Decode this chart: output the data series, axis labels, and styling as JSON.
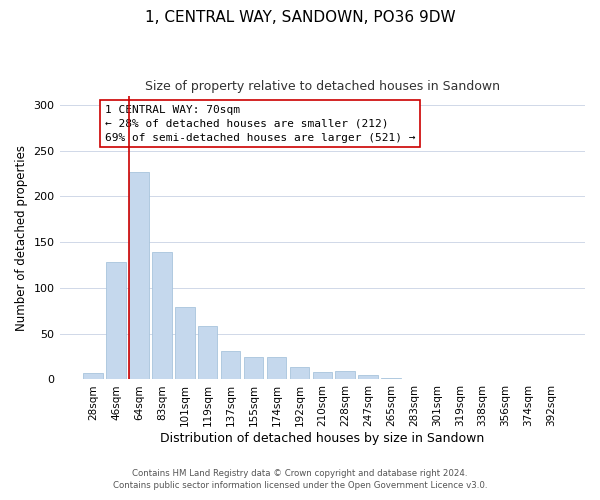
{
  "title": "1, CENTRAL WAY, SANDOWN, PO36 9DW",
  "subtitle": "Size of property relative to detached houses in Sandown",
  "xlabel": "Distribution of detached houses by size in Sandown",
  "ylabel": "Number of detached properties",
  "bar_labels": [
    "28sqm",
    "46sqm",
    "64sqm",
    "83sqm",
    "101sqm",
    "119sqm",
    "137sqm",
    "155sqm",
    "174sqm",
    "192sqm",
    "210sqm",
    "228sqm",
    "247sqm",
    "265sqm",
    "283sqm",
    "301sqm",
    "319sqm",
    "338sqm",
    "356sqm",
    "374sqm",
    "392sqm"
  ],
  "bar_values": [
    7,
    128,
    226,
    139,
    79,
    58,
    31,
    25,
    25,
    14,
    8,
    9,
    5,
    2,
    1,
    0,
    1,
    0,
    0,
    0,
    0
  ],
  "bar_color": "#c5d8ed",
  "bar_edge_color": "#a8c4dc",
  "vline_x_index": 2,
  "vline_color": "#cc0000",
  "ylim": [
    0,
    310
  ],
  "yticks": [
    0,
    50,
    100,
    150,
    200,
    250,
    300
  ],
  "annotation_title": "1 CENTRAL WAY: 70sqm",
  "annotation_line1": "← 28% of detached houses are smaller (212)",
  "annotation_line2": "69% of semi-detached houses are larger (521) →",
  "footer1": "Contains HM Land Registry data © Crown copyright and database right 2024.",
  "footer2": "Contains public sector information licensed under the Open Government Licence v3.0.",
  "background_color": "#ffffff",
  "grid_color": "#d0d8e8"
}
